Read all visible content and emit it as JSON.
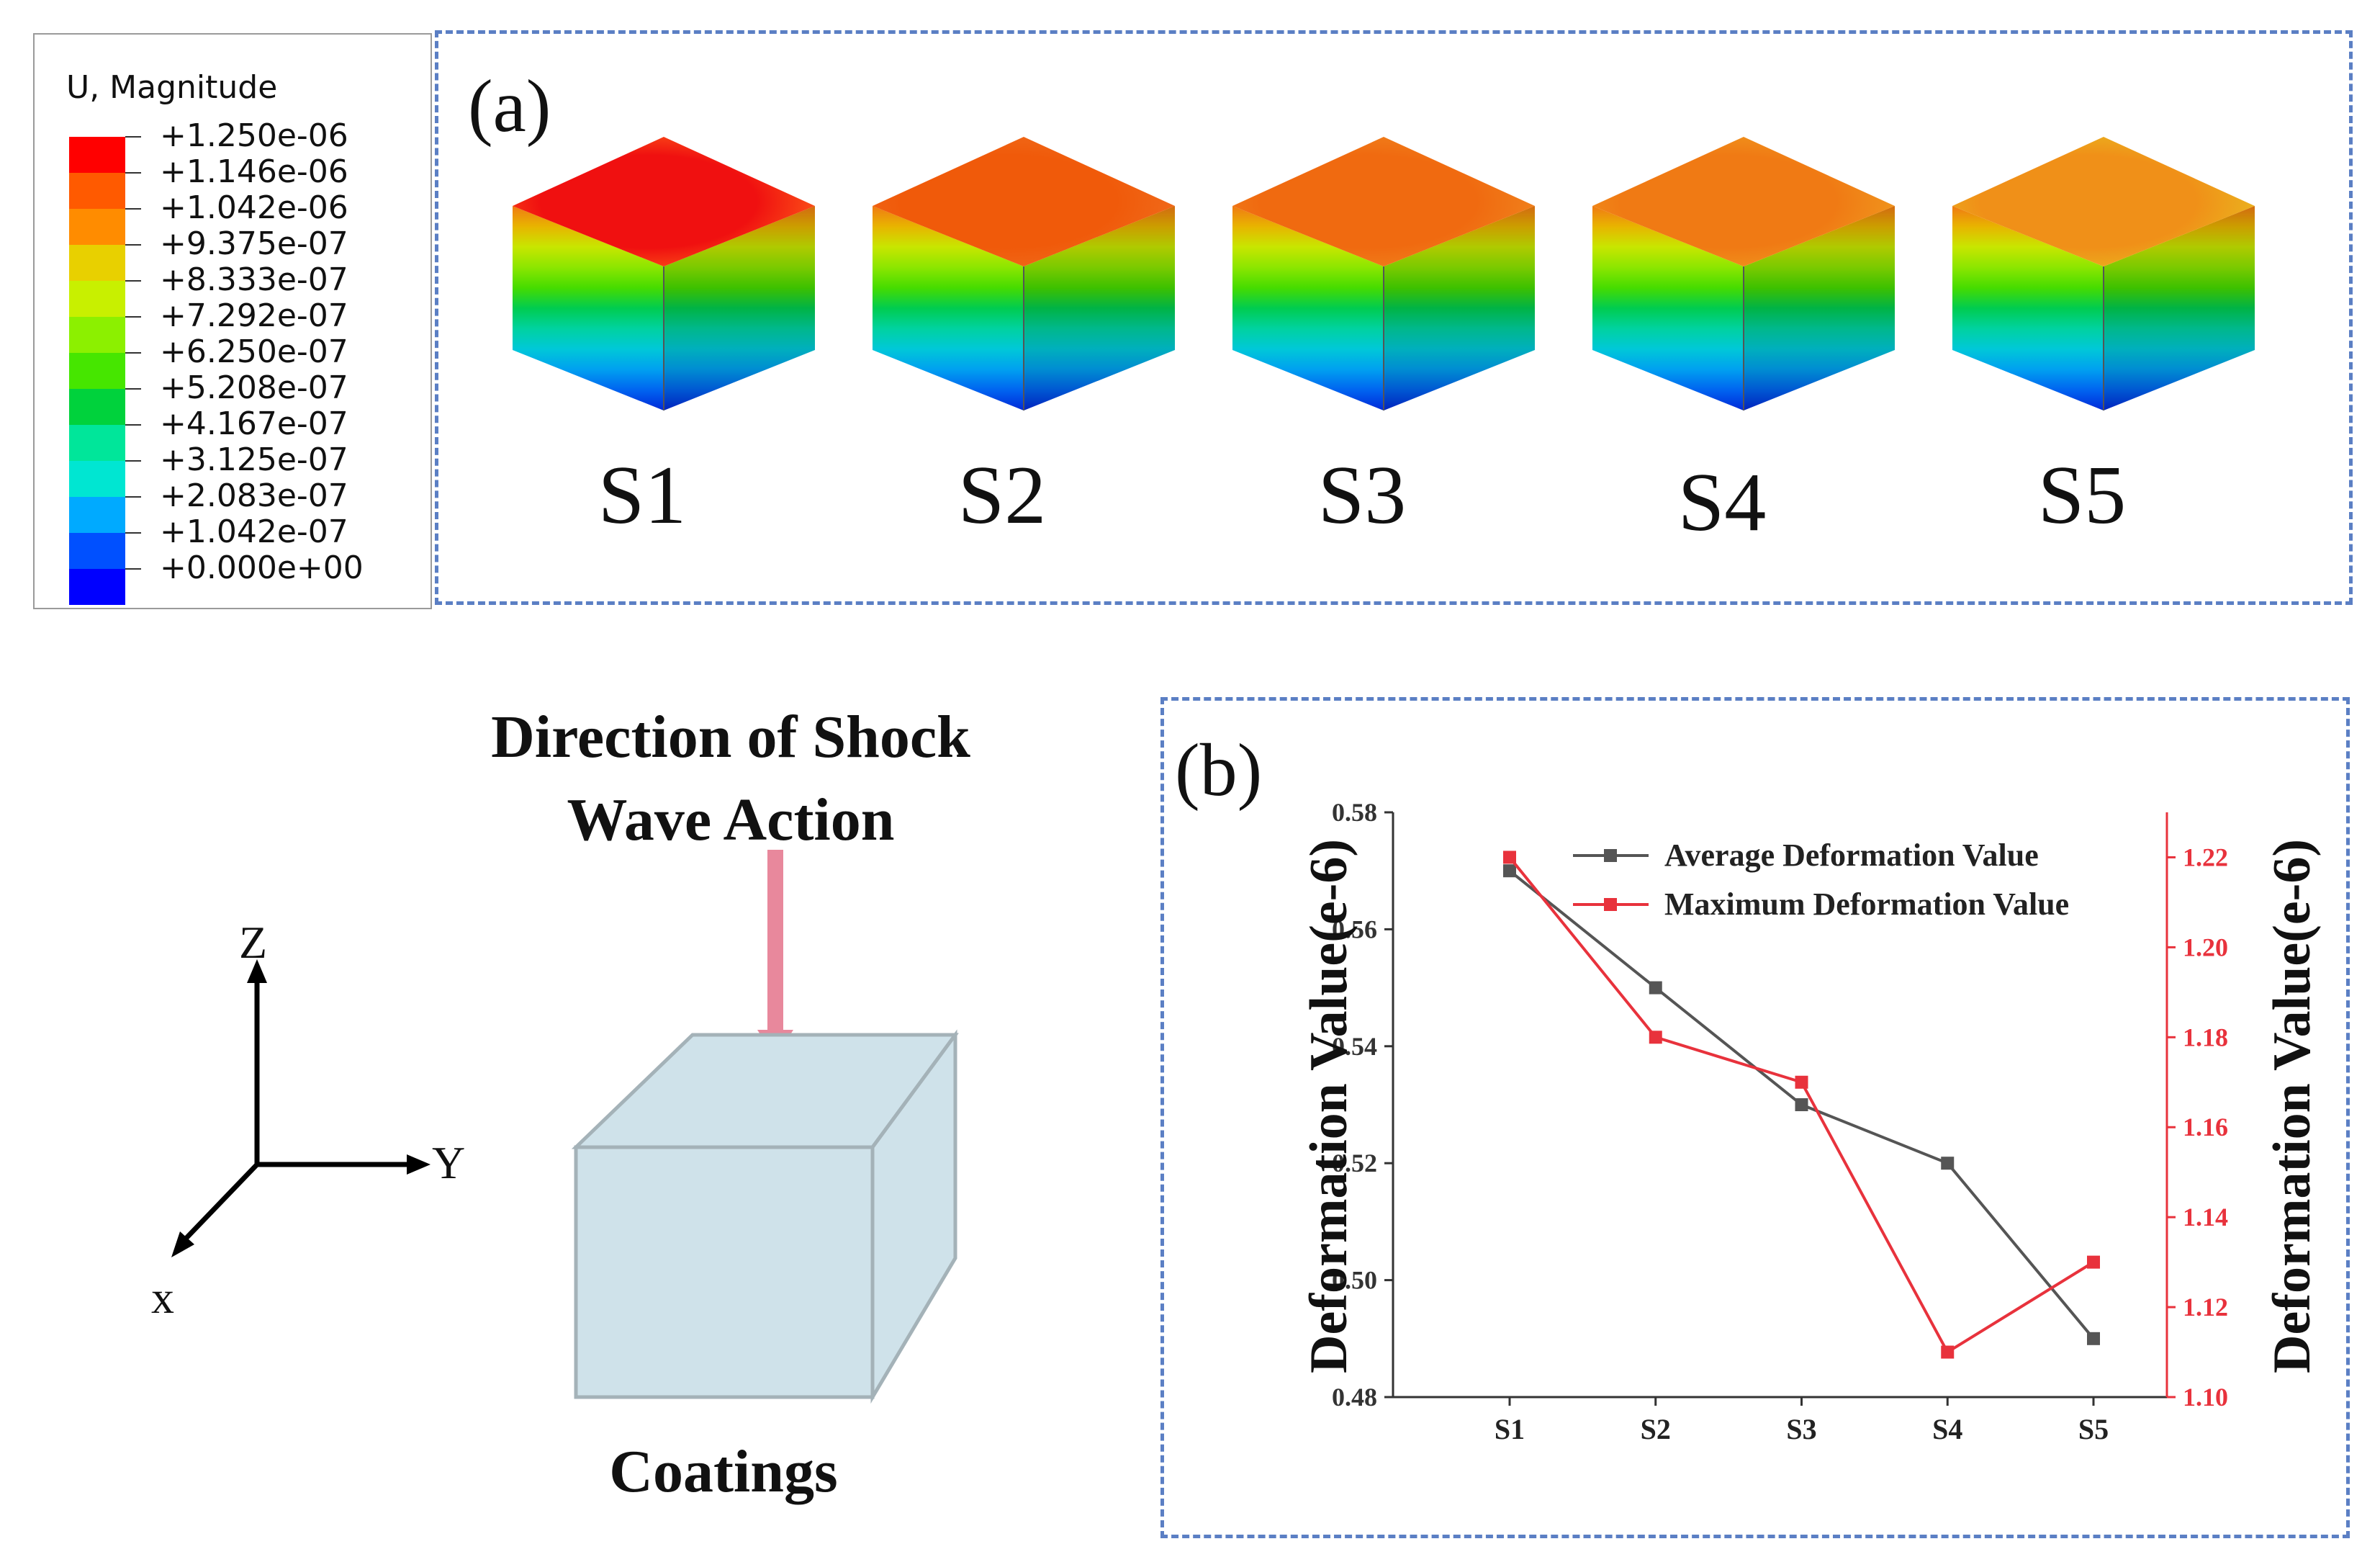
{
  "legend": {
    "title": "U, Magnitude",
    "labels": [
      "+1.250e-06",
      "+1.146e-06",
      "+1.042e-06",
      "+9.375e-07",
      "+8.333e-07",
      "+7.292e-07",
      "+6.250e-07",
      "+5.208e-07",
      "+4.167e-07",
      "+3.125e-07",
      "+2.083e-07",
      "+1.042e-07",
      "+0.000e+00"
    ],
    "colors": [
      "#ff0000",
      "#ff5a00",
      "#ff8c00",
      "#e8d000",
      "#c8f000",
      "#8cf000",
      "#46e600",
      "#00d23c",
      "#00e69a",
      "#00e6d2",
      "#00aaff",
      "#0050ff",
      "#0000ff"
    ]
  },
  "panel_a": {
    "letter": "(a)",
    "samples": [
      {
        "label": "S1",
        "top_color": "#f01010",
        "top_edge": "#ff6a1a"
      },
      {
        "label": "S2",
        "top_color": "#f05a0a",
        "top_edge": "#f07020"
      },
      {
        "label": "S3",
        "top_color": "#f06a10",
        "top_edge": "#f08a20"
      },
      {
        "label": "S4",
        "top_color": "#f07a14",
        "top_edge": "#f0a020"
      },
      {
        "label": "S5",
        "top_color": "#f09018",
        "top_edge": "#e8c020"
      }
    ]
  },
  "diagram": {
    "direction_line1": "Direction of Shock",
    "direction_line2": "Wave Action",
    "coatings_label": "Coatings",
    "axis_z": "Z",
    "axis_y": "Y",
    "axis_x": "x",
    "arrow_color": "#e8889c",
    "block_color": "#cfe2ea"
  },
  "panel_b": {
    "letter": "(b)"
  },
  "chart_data": {
    "type": "line",
    "categories": [
      "S1",
      "S2",
      "S3",
      "S4",
      "S5"
    ],
    "series": [
      {
        "name": "Average Deformation Value",
        "axis": "left",
        "color": "#555555",
        "values": [
          0.57,
          0.55,
          0.53,
          0.52,
          0.49
        ]
      },
      {
        "name": "Maximum Deformation Value",
        "axis": "right",
        "color": "#e8323c",
        "values": [
          1.22,
          1.18,
          1.17,
          1.11,
          1.13
        ]
      }
    ],
    "ylabel_left": "Deformation Value(e-6)",
    "ylabel_right": "Deformation Value(e-6)",
    "ylim_left": [
      0.48,
      0.58
    ],
    "yticks_left": [
      "0.48",
      "0.50",
      "0.52",
      "0.54",
      "0.56",
      "0.58"
    ],
    "ylim_right": [
      1.1,
      1.23
    ],
    "yticks_right": [
      "1.10",
      "1.12",
      "1.14",
      "1.16",
      "1.18",
      "1.20",
      "1.22"
    ],
    "legend_position": "top-right",
    "grid": false
  }
}
